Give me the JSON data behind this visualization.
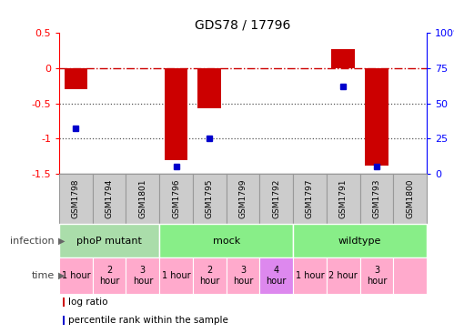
{
  "title": "GDS78 / 17796",
  "samples": [
    "GSM1798",
    "GSM1794",
    "GSM1801",
    "GSM1796",
    "GSM1795",
    "GSM1799",
    "GSM1792",
    "GSM1797",
    "GSM1791",
    "GSM1793",
    "GSM1800"
  ],
  "log_ratio": [
    -0.3,
    0.0,
    0.0,
    -1.3,
    -0.57,
    0.0,
    0.0,
    0.0,
    0.27,
    -1.38,
    0.0
  ],
  "percentile_rank": [
    32,
    0,
    0,
    5,
    25,
    0,
    0,
    0,
    62,
    5,
    0
  ],
  "percentile_rank_shown": [
    true,
    false,
    false,
    true,
    true,
    false,
    false,
    false,
    true,
    true,
    false
  ],
  "ylim_left": [
    -1.5,
    0.5
  ],
  "ylim_right": [
    0,
    100
  ],
  "infection_groups": [
    {
      "label": "phoP mutant",
      "start": 0,
      "end": 3,
      "color": "#aaddaa"
    },
    {
      "label": "mock",
      "start": 3,
      "end": 7,
      "color": "#88ee88"
    },
    {
      "label": "wildtype",
      "start": 7,
      "end": 11,
      "color": "#88ee88"
    }
  ],
  "time_labels": [
    "1 hour",
    "2\nhour",
    "3\nhour",
    "1 hour",
    "2\nhour",
    "3\nhour",
    "4\nhour",
    "1 hour",
    "2 hour",
    "3\nhour"
  ],
  "time_sample_idx": [
    0,
    1,
    2,
    3,
    4,
    5,
    6,
    7,
    8,
    9
  ],
  "time_colors": [
    "#ffaacc",
    "#ffaacc",
    "#ffaacc",
    "#ffaacc",
    "#ffaacc",
    "#ffaacc",
    "#dd88ee",
    "#ffaacc",
    "#ffaacc",
    "#ffaacc"
  ],
  "bar_color": "#cc0000",
  "dot_color": "#0000cc",
  "ref_line_color": "#cc0000",
  "dotted_line_color": "#555555",
  "sample_box_color": "#cccccc",
  "sample_box_edge": "#999999",
  "left_label_color": "#444444",
  "arrow_color": "#666666"
}
